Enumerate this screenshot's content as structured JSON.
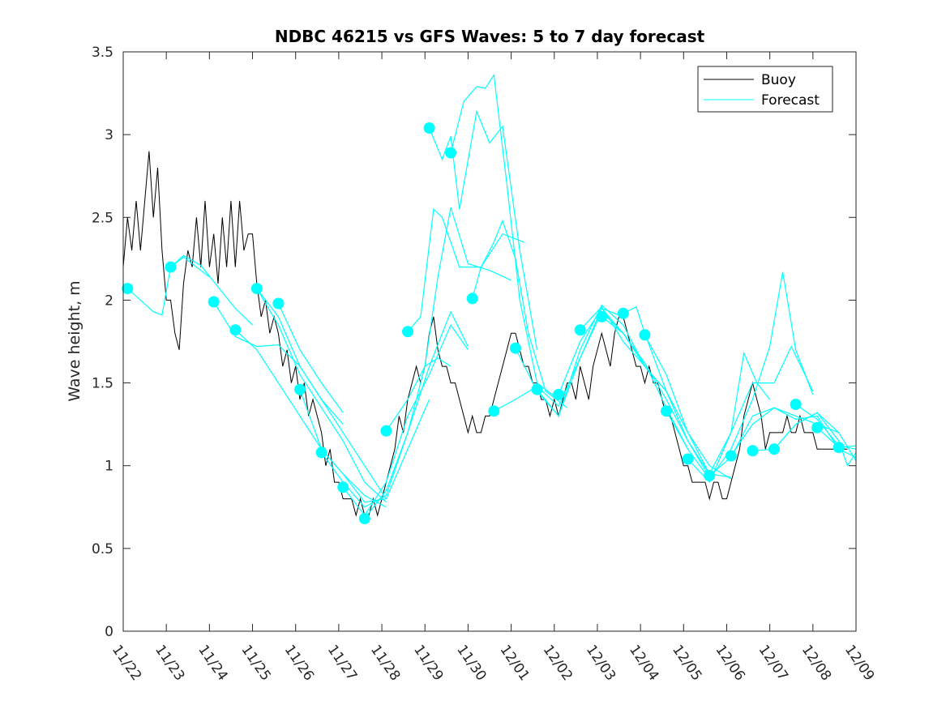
{
  "chart_data": {
    "type": "line",
    "title": "NDBC 46215 vs GFS Waves: 5 to 7 day forecast",
    "xlabel": "",
    "ylabel": "Wave height, m",
    "ylim": [
      0,
      3.5
    ],
    "yticks": [
      0,
      0.5,
      1,
      1.5,
      2,
      2.5,
      3,
      3.5
    ],
    "ytick_labels": [
      "0",
      "0.5",
      "1",
      "1.5",
      "2",
      "2.5",
      "3",
      "3.5"
    ],
    "xlim_days": [
      0,
      17
    ],
    "xtick_labels": [
      "11/22",
      "11/23",
      "11/24",
      "11/25",
      "11/26",
      "11/27",
      "11/28",
      "11/29",
      "11/30",
      "12/01",
      "12/02",
      "12/03",
      "12/04",
      "12/05",
      "12/06",
      "12/07",
      "12/08",
      "12/09"
    ],
    "grid": false,
    "legend": {
      "position": "top-right",
      "entries": [
        {
          "label": "Buoy",
          "color": "#000000"
        },
        {
          "label": "Forecast",
          "color": "#00ffff"
        }
      ]
    },
    "colors": {
      "buoy": "#000000",
      "forecast": "#00ffff",
      "axis": "#262626"
    },
    "buoy": {
      "name": "Buoy",
      "x_days": [
        0,
        0.1,
        0.2,
        0.3,
        0.4,
        0.5,
        0.6,
        0.7,
        0.8,
        0.9,
        1.0,
        1.1,
        1.2,
        1.3,
        1.4,
        1.5,
        1.6,
        1.7,
        1.8,
        1.9,
        2.0,
        2.1,
        2.2,
        2.3,
        2.4,
        2.5,
        2.6,
        2.7,
        2.8,
        2.9,
        3.0,
        3.1,
        3.2,
        3.3,
        3.4,
        3.5,
        3.6,
        3.7,
        3.8,
        3.9,
        4.0,
        4.1,
        4.2,
        4.3,
        4.4,
        4.5,
        4.6,
        4.7,
        4.8,
        4.9,
        5.0,
        5.1,
        5.2,
        5.3,
        5.4,
        5.5,
        5.6,
        5.7,
        5.8,
        5.9,
        6.0,
        6.1,
        6.2,
        6.3,
        6.4,
        6.5,
        6.6,
        6.7,
        6.8,
        6.9,
        7.0,
        7.1,
        7.2,
        7.3,
        7.4,
        7.5,
        7.6,
        7.7,
        7.8,
        7.9,
        8.0,
        8.1,
        8.2,
        8.3,
        8.4,
        8.5,
        8.6,
        8.7,
        8.8,
        8.9,
        9.0,
        9.1,
        9.2,
        9.3,
        9.4,
        9.5,
        9.6,
        9.7,
        9.8,
        9.9,
        10.0,
        10.1,
        10.2,
        10.3,
        10.4,
        10.5,
        10.6,
        10.7,
        10.8,
        10.9,
        11.0,
        11.1,
        11.2,
        11.3,
        11.4,
        11.5,
        11.6,
        11.7,
        11.8,
        11.9,
        12.0,
        12.1,
        12.2,
        12.3,
        12.4,
        12.5,
        12.6,
        12.7,
        12.8,
        12.9,
        13.0,
        13.1,
        13.2,
        13.3,
        13.4,
        13.5,
        13.6,
        13.7,
        13.8,
        13.9,
        14.0,
        14.1,
        14.2,
        14.3,
        14.4,
        14.5,
        14.6,
        14.7,
        14.8,
        14.9,
        15.0,
        15.1,
        15.2,
        15.3,
        15.4,
        15.5,
        15.6,
        15.7,
        15.8,
        15.9,
        16.0,
        16.1,
        16.2,
        16.3,
        16.4,
        16.5,
        16.6,
        16.7,
        16.8,
        16.9,
        17.0
      ],
      "values": [
        2.2,
        2.5,
        2.3,
        2.6,
        2.3,
        2.6,
        2.9,
        2.5,
        2.8,
        2.3,
        2.0,
        2.0,
        1.8,
        1.7,
        2.1,
        2.3,
        2.2,
        2.5,
        2.2,
        2.6,
        2.2,
        2.4,
        2.1,
        2.5,
        2.2,
        2.6,
        2.2,
        2.6,
        2.3,
        2.4,
        2.4,
        2.1,
        1.9,
        2.0,
        1.8,
        1.9,
        1.8,
        1.6,
        1.7,
        1.5,
        1.6,
        1.4,
        1.5,
        1.3,
        1.4,
        1.3,
        1.2,
        1.0,
        1.1,
        0.9,
        0.9,
        0.8,
        0.8,
        0.8,
        0.7,
        0.8,
        0.7,
        0.7,
        0.8,
        0.7,
        0.8,
        0.9,
        1.0,
        1.1,
        1.3,
        1.2,
        1.4,
        1.5,
        1.6,
        1.5,
        1.6,
        1.8,
        1.9,
        1.7,
        1.6,
        1.6,
        1.5,
        1.5,
        1.4,
        1.3,
        1.2,
        1.3,
        1.2,
        1.2,
        1.3,
        1.3,
        1.4,
        1.5,
        1.6,
        1.7,
        1.8,
        1.8,
        1.7,
        1.6,
        1.6,
        1.5,
        1.5,
        1.4,
        1.4,
        1.3,
        1.4,
        1.3,
        1.4,
        1.5,
        1.5,
        1.4,
        1.6,
        1.5,
        1.4,
        1.6,
        1.7,
        1.8,
        1.7,
        1.6,
        1.8,
        1.9,
        1.9,
        1.8,
        1.7,
        1.6,
        1.6,
        1.5,
        1.6,
        1.5,
        1.5,
        1.4,
        1.3,
        1.3,
        1.2,
        1.1,
        1.0,
        1.0,
        0.9,
        0.9,
        0.9,
        0.9,
        0.8,
        0.9,
        0.9,
        0.8,
        0.8,
        0.9,
        1.0,
        1.1,
        1.3,
        1.4,
        1.5,
        1.4,
        1.3,
        1.1,
        1.2,
        1.2,
        1.2,
        1.2,
        1.3,
        1.2,
        1.2,
        1.3,
        1.2,
        1.2,
        1.2,
        1.1,
        1.1,
        1.1,
        1.1,
        1.1,
        1.1,
        1.1,
        1.1
      ]
    },
    "forecast_points": {
      "name": "Forecast start points",
      "x_days": [
        0.1,
        1.1,
        2.1,
        2.6,
        3.1,
        3.6,
        4.1,
        4.6,
        5.1,
        5.6,
        6.1,
        6.6,
        7.1,
        7.6,
        8.1,
        8.6,
        9.1,
        9.6,
        10.1,
        10.6,
        11.1,
        11.6,
        12.1,
        12.6,
        13.1,
        13.6,
        14.1,
        14.6,
        15.1,
        15.6,
        16.1,
        16.6
      ],
      "values": [
        2.07,
        2.2,
        1.99,
        1.82,
        2.07,
        1.98,
        1.46,
        1.08,
        0.87,
        0.68,
        1.21,
        1.81,
        3.04,
        2.89,
        2.01,
        1.33,
        1.71,
        1.46,
        1.43,
        1.82,
        1.9,
        1.92,
        1.79,
        1.33,
        1.04,
        0.94,
        1.06,
        1.09,
        1.1,
        1.37,
        1.23,
        1.11
      ]
    },
    "forecast_series": [
      {
        "name": "Forecast",
        "x_days": [
          0.1,
          0.4,
          0.7,
          0.9,
          1.1,
          1.4,
          1.7,
          2.0
        ],
        "values": [
          2.07,
          2.0,
          1.93,
          1.91,
          2.2,
          2.26,
          2.2,
          2.14
        ]
      },
      {
        "name": "Forecast",
        "x_days": [
          1.1,
          1.4,
          1.8,
          2.2,
          2.6,
          3.0
        ],
        "values": [
          2.2,
          2.27,
          2.21,
          2.08,
          1.95,
          1.85
        ]
      },
      {
        "name": "Forecast",
        "x_days": [
          2.1,
          2.6,
          3.1,
          3.6,
          4.1,
          4.6,
          5.1,
          5.6,
          6.1
        ],
        "values": [
          1.99,
          1.78,
          1.72,
          1.73,
          1.6,
          1.4,
          1.2,
          1.0,
          0.8
        ]
      },
      {
        "name": "Forecast",
        "x_days": [
          2.6,
          3.1,
          3.6,
          4.1,
          4.6,
          5.1,
          5.6,
          6.1
        ],
        "values": [
          1.82,
          1.7,
          1.5,
          1.3,
          1.1,
          0.95,
          0.82,
          0.75
        ]
      },
      {
        "name": "Forecast",
        "x_days": [
          3.1,
          3.6,
          4.1,
          4.6,
          5.1,
          5.6,
          6.1
        ],
        "values": [
          2.07,
          1.85,
          1.55,
          1.35,
          1.15,
          0.9,
          0.78
        ]
      },
      {
        "name": "Forecast",
        "x_days": [
          3.1,
          3.6,
          4.1,
          4.6,
          5.1
        ],
        "values": [
          2.07,
          1.9,
          1.6,
          1.4,
          1.25
        ]
      },
      {
        "name": "Forecast",
        "x_days": [
          3.6,
          4.1,
          4.6,
          5.1
        ],
        "values": [
          1.98,
          1.7,
          1.5,
          1.32
        ]
      },
      {
        "name": "Forecast",
        "x_days": [
          4.1,
          4.6,
          5.1,
          5.6,
          6.1,
          6.6,
          7.1
        ],
        "values": [
          1.46,
          1.1,
          0.95,
          0.78,
          0.8,
          1.1,
          1.4
        ]
      },
      {
        "name": "Forecast",
        "x_days": [
          4.6,
          5.1,
          5.6,
          6.1,
          6.6,
          7.1,
          7.6,
          8.0
        ],
        "values": [
          1.08,
          0.9,
          0.75,
          0.82,
          1.2,
          1.6,
          1.93,
          1.72
        ]
      },
      {
        "name": "Forecast",
        "x_days": [
          5.1,
          5.6,
          6.1,
          6.6,
          7.1,
          7.6,
          8.0
        ],
        "values": [
          0.87,
          0.7,
          0.9,
          1.3,
          1.55,
          1.85,
          1.7
        ]
      },
      {
        "name": "Forecast",
        "x_days": [
          5.6,
          6.1,
          6.6,
          7.0,
          7.3,
          7.6
        ],
        "values": [
          0.68,
          0.85,
          1.2,
          1.6,
          1.65,
          1.6
        ]
      },
      {
        "name": "Forecast",
        "x_days": [
          6.1,
          6.6,
          7.0,
          7.3,
          7.6,
          8.0,
          8.5,
          9.0
        ],
        "values": [
          1.21,
          1.4,
          1.6,
          2.14,
          2.56,
          2.22,
          2.18,
          2.12
        ]
      },
      {
        "name": "Forecast",
        "x_days": [
          6.6,
          6.9,
          7.2,
          7.4,
          7.8,
          8.3,
          8.8,
          9.3
        ],
        "values": [
          1.81,
          1.9,
          2.55,
          2.5,
          2.2,
          2.2,
          2.4,
          2.35
        ]
      },
      {
        "name": "Forecast",
        "x_days": [
          7.1,
          7.4,
          7.6,
          7.8,
          8.2,
          8.5,
          8.8,
          9.2,
          9.6
        ],
        "values": [
          3.04,
          2.85,
          2.99,
          2.55,
          3.14,
          2.95,
          3.05,
          2.3,
          1.7
        ]
      },
      {
        "name": "Forecast",
        "x_days": [
          7.6,
          7.9,
          8.2,
          8.4,
          8.6,
          8.9,
          9.2,
          9.6,
          10.1
        ],
        "values": [
          2.89,
          3.2,
          3.29,
          3.28,
          3.36,
          2.7,
          2.0,
          1.5,
          1.4
        ]
      },
      {
        "name": "Forecast",
        "x_days": [
          8.1,
          8.3,
          8.6,
          8.8,
          9.1,
          9.4,
          9.8,
          10.3
        ],
        "values": [
          2.01,
          2.2,
          2.35,
          2.48,
          2.25,
          1.8,
          1.45,
          1.35
        ]
      },
      {
        "name": "Forecast",
        "x_days": [
          8.6,
          9.1,
          9.6,
          10.1,
          10.6,
          11.1,
          11.6
        ],
        "values": [
          1.33,
          1.4,
          1.48,
          1.36,
          1.65,
          1.95,
          1.9
        ]
      },
      {
        "name": "Forecast",
        "x_days": [
          9.1,
          9.6,
          10.1,
          10.6,
          11.1,
          11.6,
          12.1
        ],
        "values": [
          1.71,
          1.45,
          1.3,
          1.7,
          1.97,
          1.85,
          1.6
        ]
      },
      {
        "name": "Forecast",
        "x_days": [
          9.6,
          10.1,
          10.6,
          11.1,
          11.6,
          12.1,
          12.6
        ],
        "values": [
          1.46,
          1.3,
          1.65,
          1.93,
          1.8,
          1.6,
          1.45
        ]
      },
      {
        "name": "Forecast",
        "x_days": [
          10.1,
          10.6,
          11.1,
          11.6,
          12.1,
          12.6,
          13.1
        ],
        "values": [
          1.43,
          1.75,
          1.95,
          1.8,
          1.62,
          1.35,
          1.1
        ]
      },
      {
        "name": "Forecast",
        "x_days": [
          10.6,
          11.1,
          11.6,
          12.1,
          12.6,
          13.1,
          13.6
        ],
        "values": [
          1.82,
          1.96,
          1.75,
          1.6,
          1.45,
          1.15,
          0.93
        ]
      },
      {
        "name": "Forecast",
        "x_days": [
          11.1,
          11.6,
          12.1,
          12.6,
          13.1,
          13.6,
          14.1
        ],
        "values": [
          1.9,
          1.8,
          1.62,
          1.4,
          1.15,
          0.95,
          0.93
        ]
      },
      {
        "name": "Forecast",
        "x_days": [
          11.6,
          11.9,
          12.1,
          12.6,
          13.1,
          13.6,
          14.1
        ],
        "values": [
          1.92,
          1.96,
          1.8,
          1.45,
          1.2,
          1.0,
          0.92
        ]
      },
      {
        "name": "Forecast",
        "x_days": [
          12.1,
          12.6,
          13.1,
          13.6,
          14.1,
          14.4,
          14.7,
          15.0
        ],
        "values": [
          1.79,
          1.55,
          1.2,
          0.95,
          1.2,
          1.68,
          1.5,
          1.4
        ]
      },
      {
        "name": "Forecast",
        "x_days": [
          12.6,
          13.1,
          13.6,
          14.1,
          14.6,
          15.0,
          15.3,
          15.6,
          16.0
        ],
        "values": [
          1.33,
          1.1,
          0.92,
          1.1,
          1.4,
          1.72,
          2.17,
          1.7,
          1.43
        ]
      },
      {
        "name": "Forecast",
        "x_days": [
          13.1,
          13.6,
          14.1,
          14.6,
          15.1,
          15.5,
          16.0
        ],
        "values": [
          1.04,
          0.9,
          1.2,
          1.5,
          1.5,
          1.72,
          1.45
        ]
      },
      {
        "name": "Forecast",
        "x_days": [
          13.6,
          14.1,
          14.6,
          15.1,
          15.6,
          16.1,
          16.6
        ],
        "values": [
          0.94,
          1.05,
          1.3,
          1.35,
          1.3,
          1.25,
          1.2
        ]
      },
      {
        "name": "Forecast",
        "x_days": [
          14.1,
          14.6,
          15.1,
          15.6,
          16.1,
          16.6,
          17.0
        ],
        "values": [
          1.06,
          1.25,
          1.35,
          1.28,
          1.3,
          1.1,
          1.05
        ]
      },
      {
        "name": "Forecast",
        "x_days": [
          14.6,
          15.1,
          15.6,
          16.1,
          16.6,
          16.8,
          17.0
        ],
        "values": [
          1.09,
          1.1,
          1.25,
          1.32,
          1.15,
          1.0,
          1.08
        ]
      },
      {
        "name": "Forecast",
        "x_days": [
          15.1,
          15.6,
          16.1,
          16.6,
          17.0
        ],
        "values": [
          1.1,
          1.25,
          1.32,
          1.2,
          1.03
        ]
      },
      {
        "name": "Forecast",
        "x_days": [
          15.6,
          16.1,
          16.6,
          17.0
        ],
        "values": [
          1.37,
          1.28,
          1.12,
          1.1
        ]
      },
      {
        "name": "Forecast",
        "x_days": [
          16.1,
          16.6,
          17.0
        ],
        "values": [
          1.23,
          1.11,
          1.12
        ]
      }
    ]
  }
}
